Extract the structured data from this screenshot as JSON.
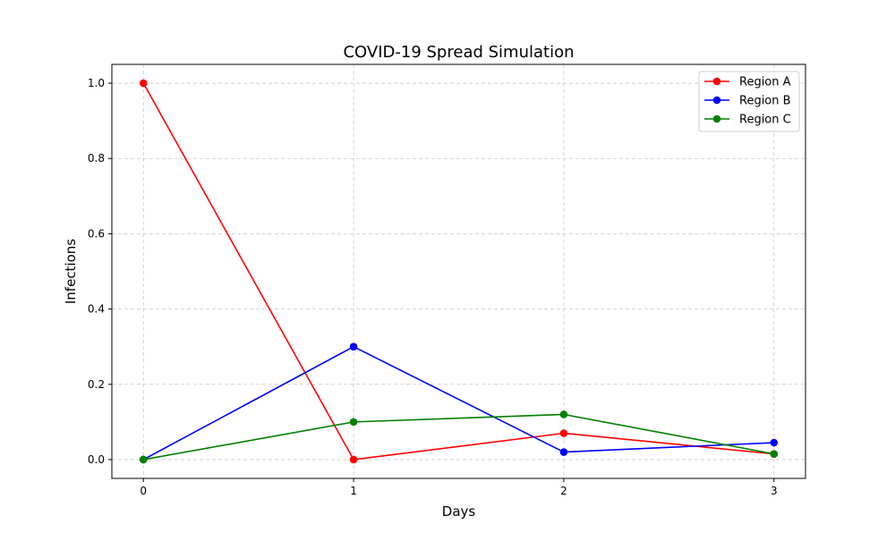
{
  "chart_data": {
    "type": "line",
    "title": "COVID-19 Spread Simulation",
    "xlabel": "Days",
    "ylabel": "Infections",
    "x": [
      0,
      1,
      2,
      3
    ],
    "x_ticks": [
      "0",
      "1",
      "2",
      "3"
    ],
    "y_ticks": [
      "0.0",
      "0.2",
      "0.4",
      "0.6",
      "0.8",
      "1.0"
    ],
    "xlim": [
      -0.15,
      3.15
    ],
    "ylim": [
      -0.05,
      1.05
    ],
    "grid": true,
    "grid_style": "dashed",
    "legend_position": "top-right",
    "series": [
      {
        "name": "Region A",
        "color": "#ff0000",
        "values": [
          1.0,
          0.0,
          0.07,
          0.015
        ]
      },
      {
        "name": "Region B",
        "color": "#0000ff",
        "values": [
          0.0,
          0.3,
          0.02,
          0.045
        ]
      },
      {
        "name": "Region C",
        "color": "#008000",
        "values": [
          0.0,
          0.1,
          0.12,
          0.015
        ]
      }
    ]
  }
}
